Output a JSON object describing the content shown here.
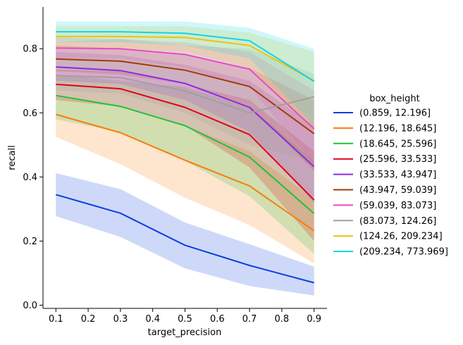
{
  "chart_data": {
    "type": "line",
    "xlabel": "target_precision",
    "ylabel": "recall",
    "xlim": [
      0.06,
      0.94
    ],
    "ylim": [
      -0.01,
      0.93
    ],
    "xticks": [
      0.1,
      0.2,
      0.3,
      0.4,
      0.5,
      0.6,
      0.7,
      0.8,
      0.9
    ],
    "xtick_labels": [
      "0.1",
      "0.2",
      "0.3",
      "0.4",
      "0.5",
      "0.6",
      "0.7",
      "0.8",
      "0.9"
    ],
    "yticks": [
      0.0,
      0.2,
      0.4,
      0.6,
      0.8
    ],
    "ytick_labels": [
      "0.0",
      "0.2",
      "0.4",
      "0.6",
      "0.8"
    ],
    "grid": false,
    "legend_title": "box_height",
    "legend_position": "right",
    "x": [
      0.1,
      0.3,
      0.5,
      0.7,
      0.9
    ],
    "series": [
      {
        "name": "(0.859, 12.196]",
        "color": "#0b3fe0",
        "values": [
          0.345,
          0.287,
          0.187,
          0.124,
          0.07
        ],
        "lower": [
          0.278,
          0.213,
          0.115,
          0.06,
          0.03
        ],
        "upper": [
          0.412,
          0.362,
          0.258,
          0.19,
          0.12
        ]
      },
      {
        "name": "(12.196, 18.645]",
        "color": "#f97c0b",
        "values": [
          0.595,
          0.538,
          0.452,
          0.372,
          0.232
        ],
        "lower": [
          0.525,
          0.44,
          0.335,
          0.25,
          0.13
        ],
        "upper": [
          0.65,
          0.62,
          0.56,
          0.48,
          0.33
        ]
      },
      {
        "name": "(18.645, 25.596]",
        "color": "#1ec23a",
        "values": [
          0.654,
          0.62,
          0.56,
          0.462,
          0.286
        ],
        "lower": [
          0.58,
          0.54,
          0.45,
          0.34,
          0.16
        ],
        "upper": [
          0.72,
          0.7,
          0.68,
          0.62,
          0.45
        ]
      },
      {
        "name": "(25.596, 33.533]",
        "color": "#e0001a",
        "values": [
          0.689,
          0.675,
          0.617,
          0.532,
          0.328
        ],
        "lower": [
          0.64,
          0.62,
          0.56,
          0.43,
          0.2
        ],
        "upper": [
          0.735,
          0.73,
          0.69,
          0.64,
          0.48
        ]
      },
      {
        "name": "(33.533, 43.947]",
        "color": "#8a2be2",
        "values": [
          0.743,
          0.732,
          0.692,
          0.617,
          0.432
        ],
        "lower": [
          0.7,
          0.69,
          0.64,
          0.54,
          0.32
        ],
        "upper": [
          0.79,
          0.78,
          0.75,
          0.7,
          0.56
        ]
      },
      {
        "name": "(43.947, 59.039]",
        "color": "#a33b06",
        "values": [
          0.768,
          0.761,
          0.733,
          0.682,
          0.535
        ],
        "lower": [
          0.73,
          0.72,
          0.69,
          0.62,
          0.42
        ],
        "upper": [
          0.81,
          0.8,
          0.78,
          0.74,
          0.64
        ]
      },
      {
        "name": "(59.039, 83.073]",
        "color": "#e84ac9",
        "values": [
          0.802,
          0.8,
          0.782,
          0.736,
          0.55
        ],
        "lower": [
          0.77,
          0.77,
          0.74,
          0.68,
          0.44
        ],
        "upper": [
          0.835,
          0.83,
          0.82,
          0.79,
          0.67
        ]
      },
      {
        "name": "(83.073, 124.26]",
        "color": "#a0a0a0",
        "values": [
          0.716,
          0.71,
          0.668,
          0.6,
          0.65
        ],
        "lower": [
          0.67,
          0.66,
          0.6,
          0.5,
          0.45
        ],
        "upper": [
          0.82,
          0.83,
          0.81,
          0.8,
          0.72
        ]
      },
      {
        "name": "(124.26, 209.234]",
        "color": "#f0c20b",
        "values": [
          0.838,
          0.838,
          0.835,
          0.81,
          0.7
        ],
        "lower": [
          0.8,
          0.8,
          0.79,
          0.74,
          0.54
        ],
        "upper": [
          0.87,
          0.87,
          0.87,
          0.85,
          0.79
        ]
      },
      {
        "name": "(209.234, 773.969]",
        "color": "#10d5e8",
        "values": [
          0.853,
          0.853,
          0.848,
          0.825,
          0.698
        ],
        "lower": [
          0.82,
          0.82,
          0.81,
          0.77,
          0.56
        ],
        "upper": [
          0.885,
          0.885,
          0.885,
          0.865,
          0.8
        ]
      }
    ]
  }
}
